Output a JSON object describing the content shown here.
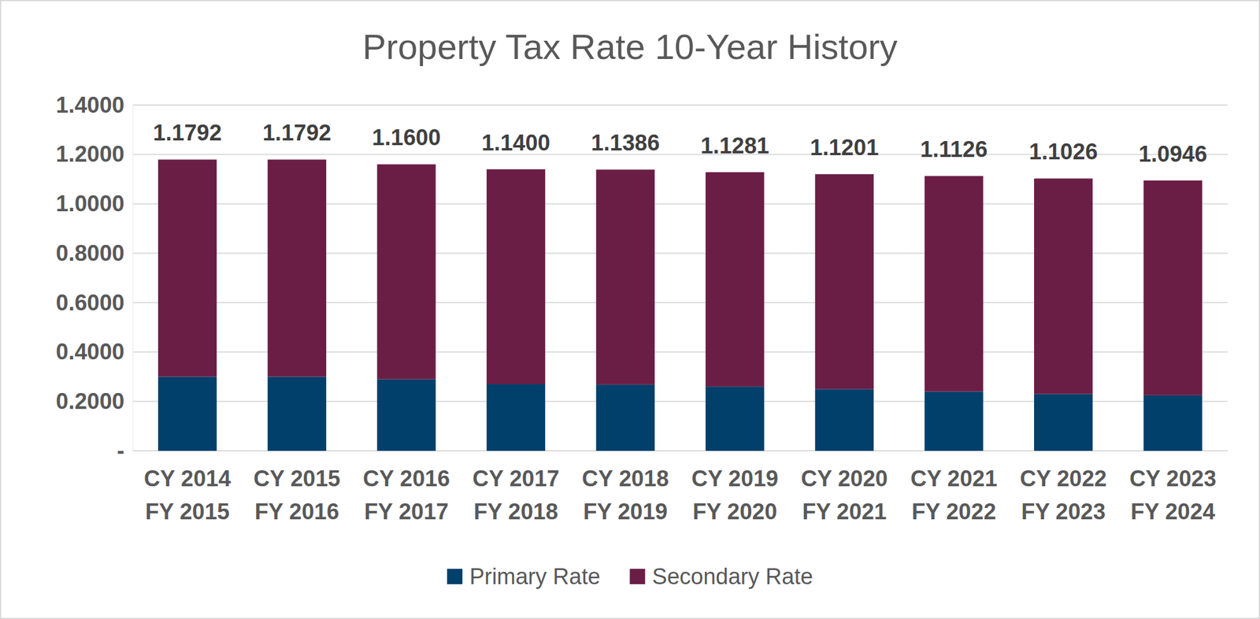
{
  "chart_data": {
    "type": "bar",
    "title": "Property Tax Rate 10-Year History",
    "stacked": true,
    "grid": true,
    "legend": "bottom",
    "categories": [
      "CY 2014\nFY 2015",
      "CY 2015\nFY 2016",
      "CY 2016\nFY 2017",
      "CY 2017\nFY 2018",
      "CY 2018\nFY 2019",
      "CY 2019\nFY 2020",
      "CY 2020\nFY 2021",
      "CY 2021\nFY 2022",
      "CY 2022\nFY 2023",
      "CY 2023\nFY 2024"
    ],
    "series": [
      {
        "name": "Primary Rate",
        "color": "#00406b",
        "values": [
          0.3,
          0.3,
          0.29,
          0.27,
          0.268,
          0.26,
          0.25,
          0.24,
          0.23,
          0.225
        ]
      },
      {
        "name": "Secondary Rate",
        "color": "#6b1e45",
        "values": [
          0.8792,
          0.8792,
          0.87,
          0.87,
          0.8706,
          0.8681,
          0.8701,
          0.8726,
          0.8726,
          0.8696
        ]
      }
    ],
    "totals": [
      1.1792,
      1.1792,
      1.16,
      1.14,
      1.1386,
      1.1281,
      1.1201,
      1.1126,
      1.1026,
      1.0946
    ],
    "total_labels": [
      "1.1792",
      "1.1792",
      "1.1600",
      "1.1400",
      "1.1386",
      "1.1281",
      "1.1201",
      "1.1126",
      "1.1026",
      "1.0946"
    ],
    "ylim": [
      0,
      1.4
    ],
    "yticks": [
      {
        "value": 0,
        "label": "-"
      },
      {
        "value": 0.2,
        "label": "0.2000"
      },
      {
        "value": 0.4,
        "label": "0.4000"
      },
      {
        "value": 0.6,
        "label": "0.6000"
      },
      {
        "value": 0.8,
        "label": "0.8000"
      },
      {
        "value": 1.0,
        "label": "1.0000"
      },
      {
        "value": 1.2,
        "label": "1.2000"
      },
      {
        "value": 1.4,
        "label": "1.4000"
      }
    ]
  }
}
